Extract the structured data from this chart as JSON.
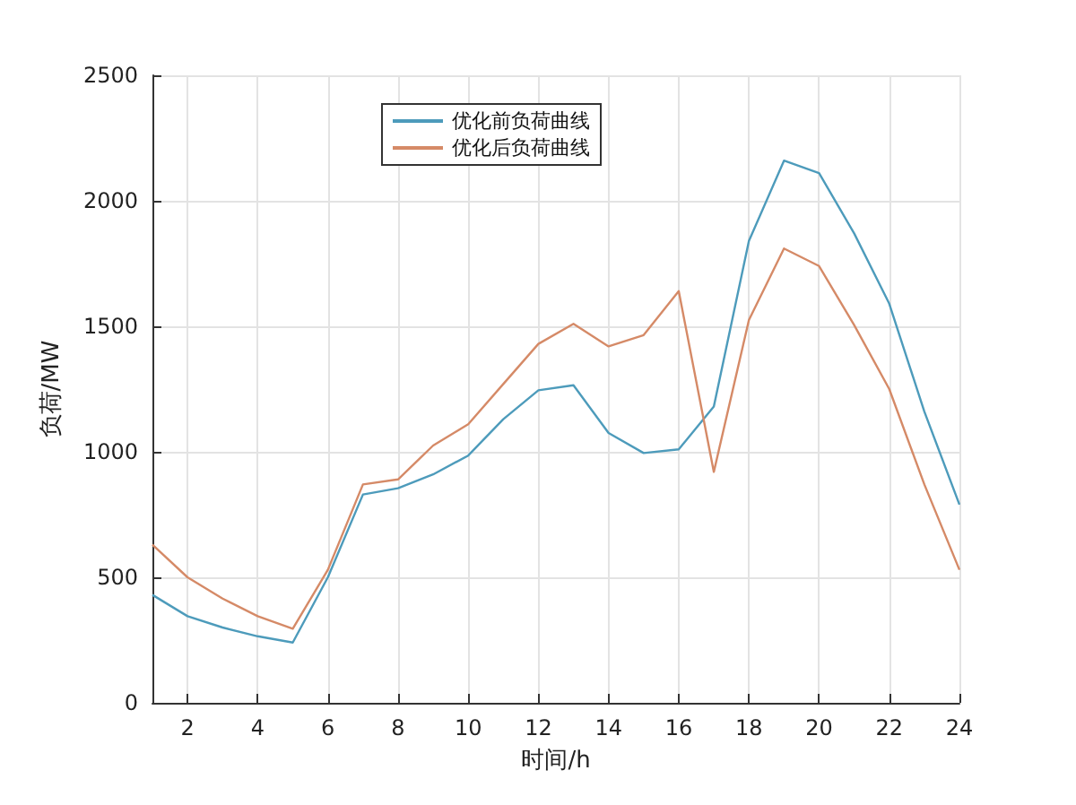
{
  "chart_data": {
    "type": "line",
    "xlabel": "时间/h",
    "ylabel": "负荷/MW",
    "x": [
      1,
      2,
      3,
      4,
      5,
      6,
      7,
      8,
      9,
      10,
      11,
      12,
      13,
      14,
      15,
      16,
      17,
      18,
      19,
      20,
      21,
      22,
      23,
      24
    ],
    "series": [
      {
        "name": "优化前负荷曲线",
        "color": "#4d9bbb",
        "values": [
          430,
          345,
          300,
          265,
          240,
          500,
          830,
          855,
          910,
          985,
          1130,
          1245,
          1265,
          1075,
          995,
          1010,
          1180,
          1840,
          2160,
          2110,
          1870,
          1590,
          1160,
          790
        ]
      },
      {
        "name": "优化后负荷曲线",
        "color": "#d58a67",
        "values": [
          630,
          500,
          415,
          345,
          295,
          530,
          870,
          890,
          1025,
          1110,
          1270,
          1430,
          1510,
          1420,
          1465,
          1640,
          920,
          1525,
          1810,
          1740,
          1505,
          1250,
          870,
          530
        ]
      }
    ],
    "xlim": [
      1,
      24
    ],
    "xticks": [
      2,
      4,
      6,
      8,
      10,
      12,
      14,
      16,
      18,
      20,
      22,
      24
    ],
    "ylim": [
      0,
      2500
    ],
    "yticks": [
      0,
      500,
      1000,
      1500,
      2000,
      2500
    ],
    "grid": true,
    "legend": "top",
    "marker": "none",
    "line_style": "solid"
  }
}
